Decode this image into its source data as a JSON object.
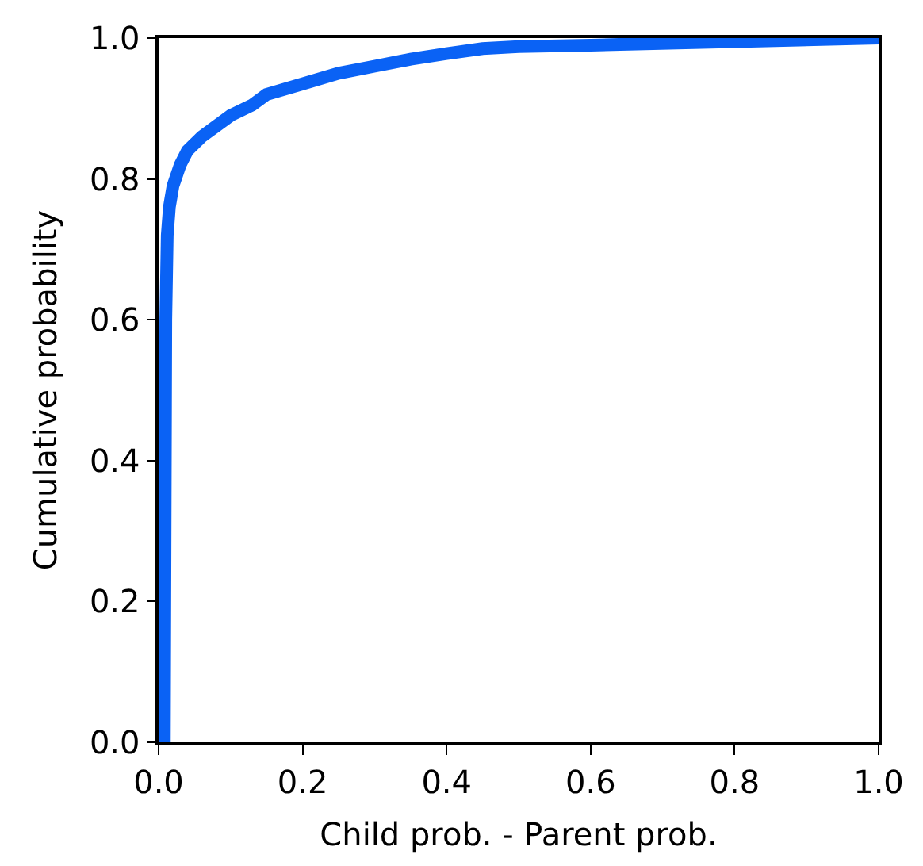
{
  "chart_data": {
    "type": "line",
    "xlabel": "Child prob. - Parent prob.",
    "ylabel": "Cumulative probability",
    "x": [
      0.008,
      0.01,
      0.012,
      0.015,
      0.02,
      0.03,
      0.04,
      0.06,
      0.08,
      0.1,
      0.13,
      0.15,
      0.2,
      0.25,
      0.3,
      0.35,
      0.4,
      0.45,
      0.5,
      0.6,
      0.8,
      1.0
    ],
    "series": [
      {
        "color": "#0a62f5",
        "values": [
          0.0,
          0.6,
          0.72,
          0.76,
          0.79,
          0.82,
          0.84,
          0.86,
          0.875,
          0.89,
          0.905,
          0.92,
          0.935,
          0.95,
          0.96,
          0.97,
          0.978,
          0.985,
          0.988,
          0.99,
          0.995,
          1.0
        ]
      }
    ],
    "xlim": [
      0,
      1
    ],
    "ylim": [
      0,
      1
    ],
    "xticks": [
      {
        "value": 0,
        "label": "0.0"
      },
      {
        "value": 0.2,
        "label": "0.2"
      },
      {
        "value": 0.4,
        "label": "0.4"
      },
      {
        "value": 0.6,
        "label": "0.6"
      },
      {
        "value": 0.8,
        "label": "0.8"
      },
      {
        "value": 1,
        "label": "1.0"
      }
    ],
    "yticks": [
      {
        "value": 0,
        "label": "0.0"
      },
      {
        "value": 0.2,
        "label": "0.2"
      },
      {
        "value": 0.4,
        "label": "0.4"
      },
      {
        "value": 0.6,
        "label": "0.6"
      },
      {
        "value": 0.8,
        "label": "0.8"
      },
      {
        "value": 1,
        "label": "1.0"
      }
    ],
    "line_style": "solid"
  }
}
